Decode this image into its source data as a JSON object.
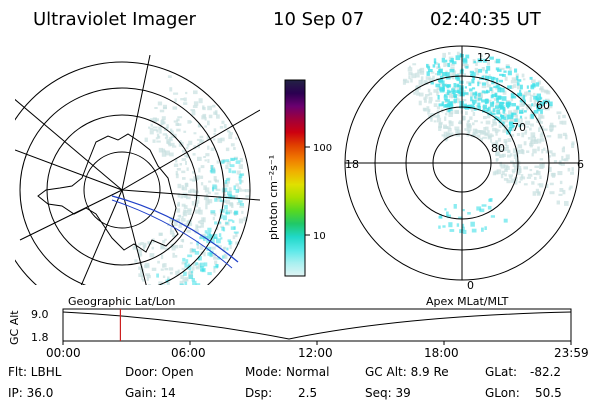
{
  "header": {
    "title": "Ultraviolet Imager",
    "date": "10 Sep 07",
    "time": "02:40:35 UT"
  },
  "left_panel": {
    "caption": "Geographic Lat/Lon"
  },
  "right_panel": {
    "caption": "Apex MLat/MLT",
    "mlt_labels": {
      "top": "12",
      "left": "18",
      "right": "6",
      "bottom": "0"
    },
    "lat_labels": [
      "60",
      "70",
      "80"
    ]
  },
  "colorbar": {
    "label": "photon cm⁻²s⁻¹",
    "ticks": [
      "100",
      "10"
    ],
    "colors": [
      "#222244",
      "#2a0050",
      "#6a0070",
      "#a0003a",
      "#cc0010",
      "#e04000",
      "#f07800",
      "#f0b000",
      "#e0e000",
      "#a8e000",
      "#58d820",
      "#20c868",
      "#20d8c8",
      "#58e8e8",
      "#a8f0f0",
      "#e0f4f4"
    ]
  },
  "altitude_plot": {
    "ylabel": "GC Alt",
    "yticks": [
      "9.0",
      "1.8"
    ],
    "xticks": [
      "00:00",
      "06:00",
      "12:00",
      "18:00",
      "23:59"
    ],
    "marker_color": "#cc2020",
    "current_time_fraction": 0.113
  },
  "status": {
    "row1": {
      "flt": "Flt: LBHL",
      "door": "Door: Open",
      "mode_label": "Mode:",
      "mode_value": "Normal",
      "gcalt": "GC Alt: 8.9 Re",
      "glat_label": "GLat:",
      "glat_value": "-82.2"
    },
    "row2": {
      "ip": "IP: 36.0",
      "gain": "Gain: 14",
      "dsp_label": "Dsp:",
      "dsp_value": "2.5",
      "seq": "Seq: 39",
      "glon_label": "GLon:",
      "glon_value": "50.5"
    }
  },
  "colors": {
    "aurora": "#40e0e8",
    "haze": "#c8e0e0",
    "orbit_track": "#2040c8"
  }
}
